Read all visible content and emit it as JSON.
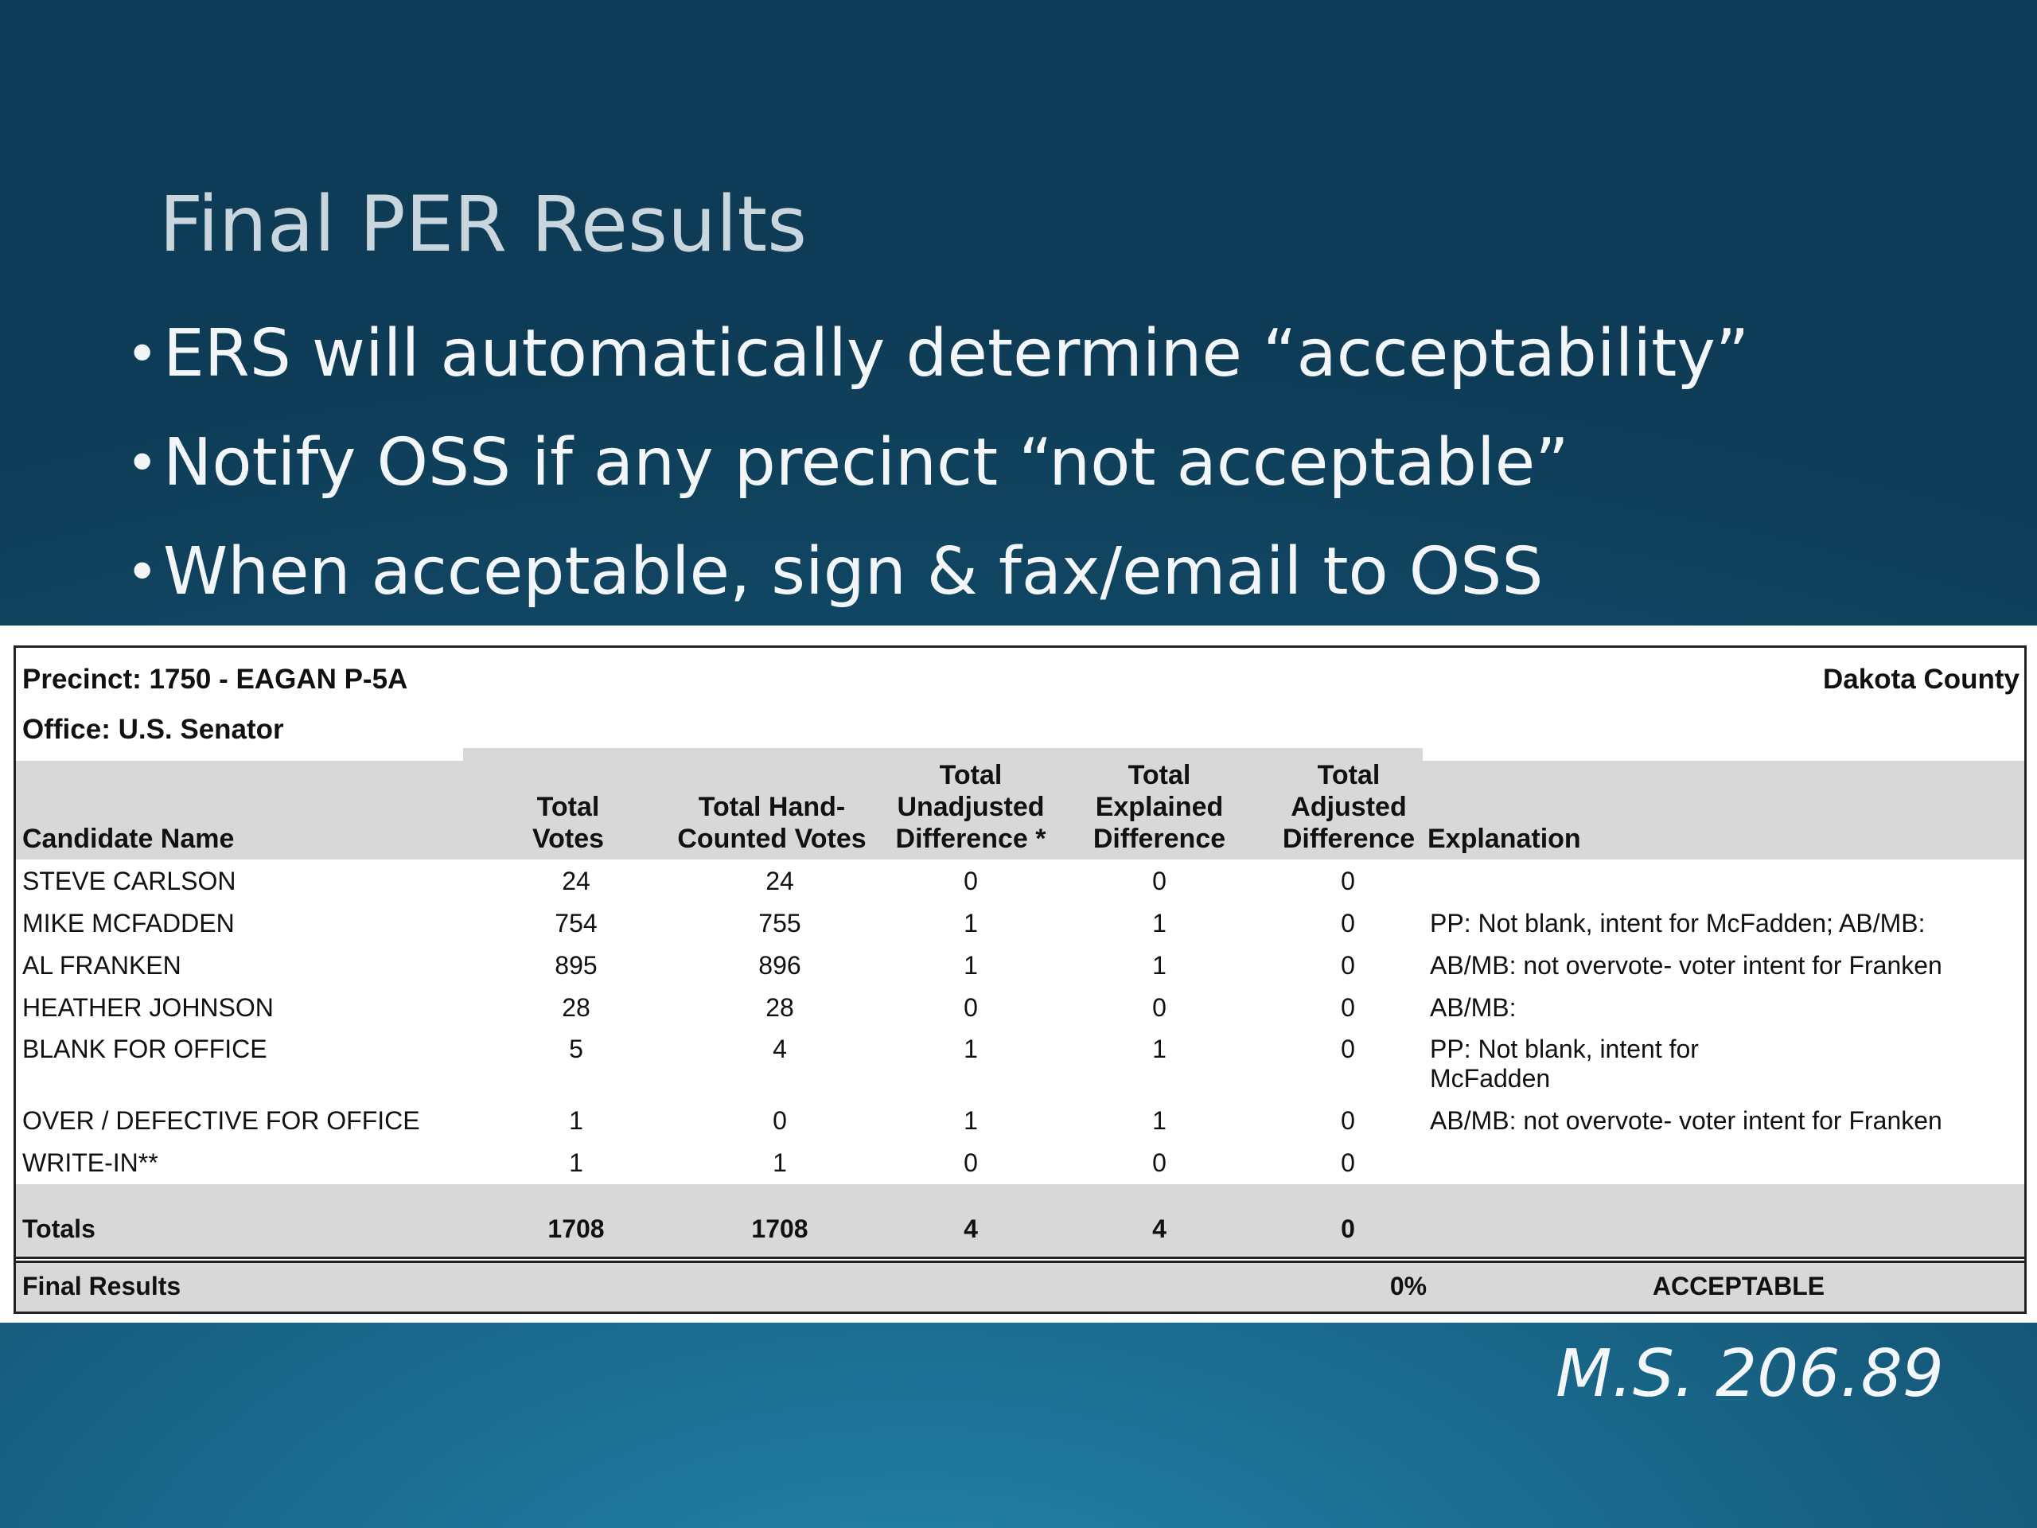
{
  "slide": {
    "title": "Final PER Results",
    "bullets": [
      "ERS will automatically determine “acceptability”",
      "Notify OSS if any precinct “not acceptable”",
      "When acceptable, sign & fax/email to OSS"
    ],
    "bullet_glyph": "•",
    "statute": "M.S.  206.89"
  },
  "report": {
    "precinct": "Precinct: 1750 - EAGAN P-5A",
    "county": "Dakota County",
    "office": "Office: U.S. Senator",
    "columns": {
      "candidate": "Candidate Name",
      "total_votes": [
        "Total",
        "Votes"
      ],
      "hand_counted": [
        "Total Hand-",
        "Counted Votes"
      ],
      "unadjusted": [
        "Total",
        "Unadjusted",
        "Difference *"
      ],
      "explained": [
        "Total",
        "Explained",
        "Difference"
      ],
      "adjusted": [
        "Total",
        "Adjusted",
        "Difference"
      ],
      "explanation": "Explanation"
    },
    "rows": [
      {
        "name": "STEVE CARLSON",
        "total": "24",
        "hand": "24",
        "unadj": "0",
        "expl_diff": "0",
        "adj": "0",
        "explanation": ""
      },
      {
        "name": "MIKE MCFADDEN",
        "total": "754",
        "hand": "755",
        "unadj": "1",
        "expl_diff": "1",
        "adj": "0",
        "explanation": "PP: Not blank, intent for McFadden; AB/MB:"
      },
      {
        "name": "AL FRANKEN",
        "total": "895",
        "hand": "896",
        "unadj": "1",
        "expl_diff": "1",
        "adj": "0",
        "explanation": "AB/MB: not overvote- voter intent for Franken"
      },
      {
        "name": "HEATHER JOHNSON",
        "total": "28",
        "hand": "28",
        "unadj": "0",
        "expl_diff": "0",
        "adj": "0",
        "explanation": "AB/MB:"
      },
      {
        "name": "BLANK FOR OFFICE",
        "total": "5",
        "hand": "4",
        "unadj": "1",
        "expl_diff": "1",
        "adj": "0",
        "explanation": "PP: Not blank, intent for McFadden"
      },
      {
        "name": "OVER / DEFECTIVE FOR OFFICE",
        "total": "1",
        "hand": "0",
        "unadj": "1",
        "expl_diff": "1",
        "adj": "0",
        "explanation": "AB/MB: not overvote- voter intent for Franken"
      },
      {
        "name": "WRITE-IN**",
        "total": "1",
        "hand": "1",
        "unadj": "0",
        "expl_diff": "0",
        "adj": "0",
        "explanation": ""
      }
    ],
    "totals": {
      "label": "Totals",
      "total": "1708",
      "hand": "1708",
      "unadj": "4",
      "expl_diff": "4",
      "adj": "0"
    },
    "final": {
      "label": "Final Results",
      "percent": "0%",
      "status": "ACCEPTABLE"
    }
  }
}
